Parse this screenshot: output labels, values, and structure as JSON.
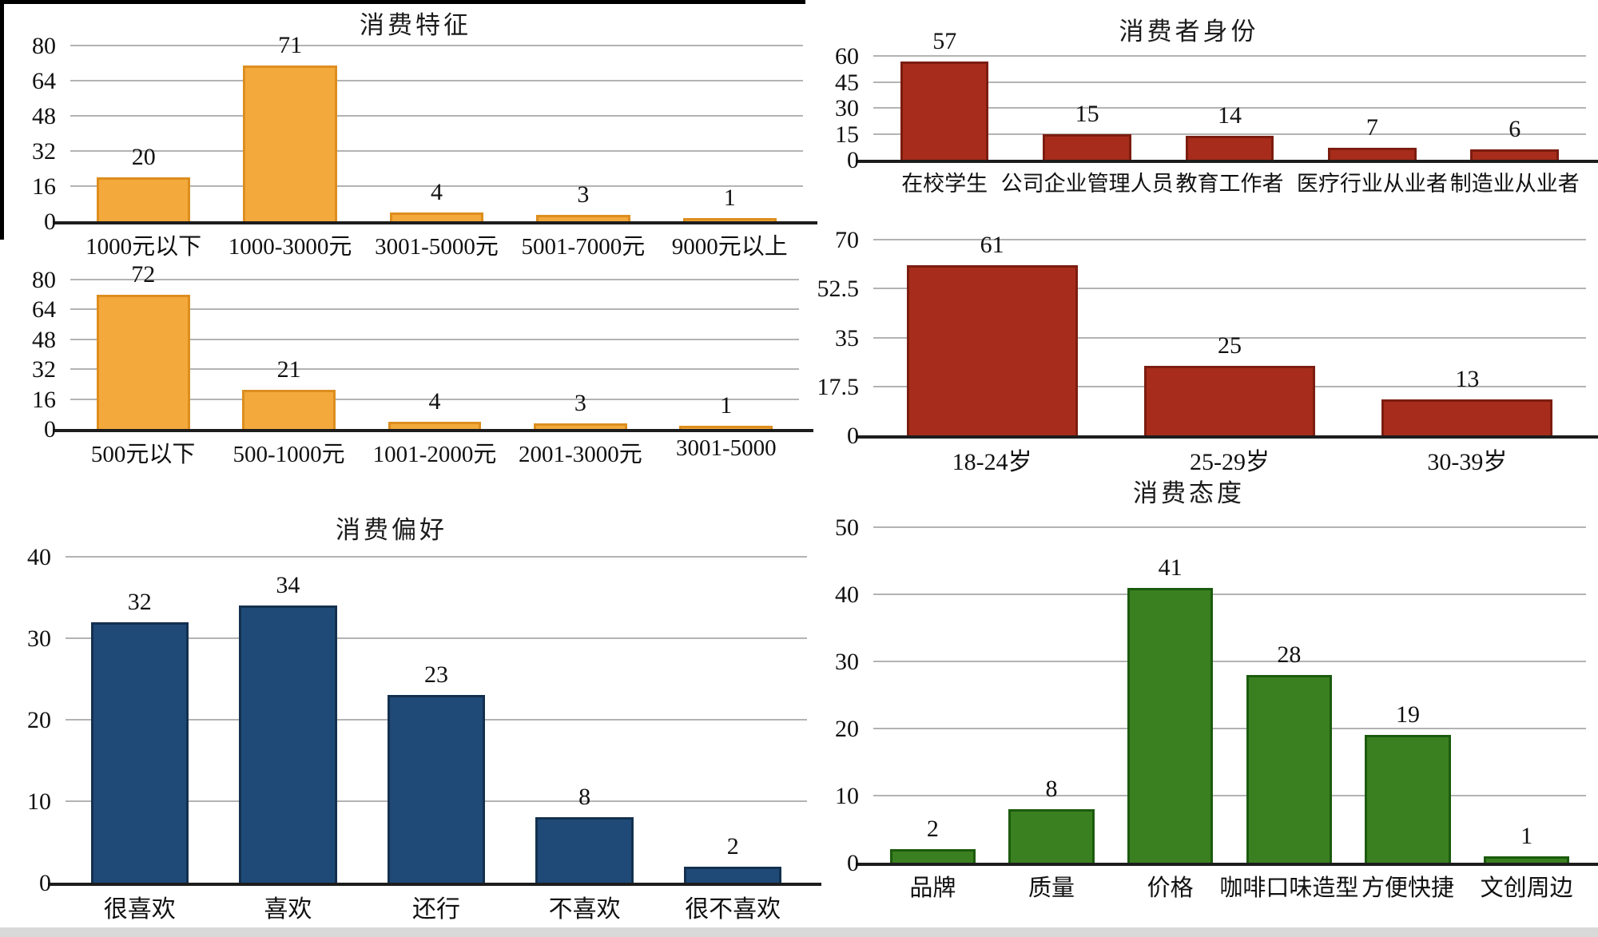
{
  "figure": {
    "description": "Six bar charts of a coffee-consumption survey, arranged in two columns",
    "background": "#ffffff",
    "gridline_color": "#b3b3b3",
    "axis_color": "#1d1d1d"
  },
  "chart_data": [
    {
      "type": "bar",
      "title": "消费特征",
      "categories": [
        "1000元以下",
        "1000-3000元",
        "3001-5000元",
        "5001-7000元",
        "9000元以上"
      ],
      "values": [
        20,
        71,
        4,
        3,
        1
      ],
      "y_ticks": [
        "80",
        "64",
        "48",
        "32",
        "16",
        "0"
      ],
      "ylim": [
        0,
        80
      ],
      "xlabel": "",
      "ylabel": "",
      "grid": true,
      "legend": null,
      "color": "#F3A93C",
      "border_color": "#DD8E1E"
    },
    {
      "type": "bar",
      "title": "",
      "categories": [
        "500元以下",
        "500-1000元",
        "1001-2000元",
        "2001-3000元",
        "3001-5000"
      ],
      "values": [
        72,
        21,
        4,
        3,
        1
      ],
      "y_ticks": [
        "80",
        "64",
        "48",
        "32",
        "16",
        "0"
      ],
      "ylim": [
        0,
        80
      ],
      "xlabel": "",
      "ylabel": "",
      "grid": true,
      "legend": null,
      "color": "#F3A93C",
      "border_color": "#DD8E1E"
    },
    {
      "type": "bar",
      "title": "消费者身份",
      "categories": [
        "在校学生",
        "公司企业管理人员",
        "教育工作者",
        "医疗行业从业者",
        "制造业从业者"
      ],
      "values": [
        57,
        15,
        14,
        7,
        6
      ],
      "y_ticks": [
        "60",
        "45",
        "30",
        "15",
        "0"
      ],
      "ylim": [
        0,
        60
      ],
      "xlabel": "",
      "ylabel": "",
      "grid": true,
      "legend": null,
      "color": "#A82C1B",
      "border_color": "#7C1D10"
    },
    {
      "type": "bar",
      "title": "",
      "categories": [
        "18-24岁",
        "25-29岁",
        "30-39岁"
      ],
      "values": [
        61,
        25,
        13
      ],
      "y_ticks": [
        "70",
        "52.5",
        "35",
        "17.5",
        "0"
      ],
      "ylim": [
        0,
        70
      ],
      "xlabel": "",
      "ylabel": "",
      "grid": true,
      "legend": null,
      "color": "#A82C1B",
      "border_color": "#7C1D10"
    },
    {
      "type": "bar",
      "title": "消费偏好",
      "categories": [
        "很喜欢",
        "喜欢",
        "还行",
        "不喜欢",
        "很不喜欢"
      ],
      "values": [
        32,
        34,
        23,
        8,
        2
      ],
      "y_ticks": [
        "40",
        "30",
        "20",
        "10",
        "0"
      ],
      "ylim": [
        0,
        40
      ],
      "xlabel": "",
      "ylabel": "",
      "grid": true,
      "legend": null,
      "color": "#1F4A78",
      "border_color": "#14304F"
    },
    {
      "type": "bar",
      "title": "消费态度",
      "categories": [
        "品牌",
        "质量",
        "价格",
        "咖啡口味造型",
        "方便快捷",
        "文创周边"
      ],
      "values": [
        2,
        8,
        41,
        28,
        19,
        1
      ],
      "y_ticks": [
        "50",
        "40",
        "30",
        "20",
        "10",
        "0"
      ],
      "ylim": [
        0,
        50
      ],
      "xlabel": "",
      "ylabel": "",
      "grid": true,
      "legend": null,
      "color": "#3A8020",
      "border_color": "#1C5B0E"
    }
  ]
}
